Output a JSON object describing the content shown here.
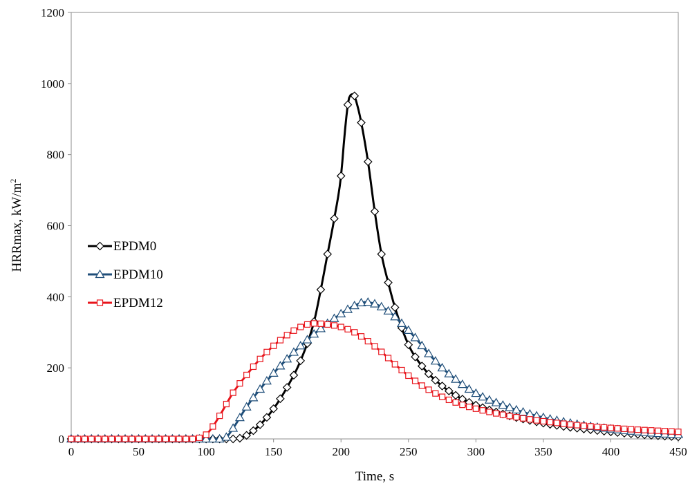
{
  "chart_data": {
    "type": "line",
    "title": "",
    "xlabel": "Time, s",
    "ylabel": "HRRmax, kW/m",
    "ylabel_sup": "2",
    "xlim": [
      0,
      450
    ],
    "ylim": [
      0,
      1200
    ],
    "xticks": [
      0,
      50,
      100,
      150,
      200,
      250,
      300,
      350,
      400,
      450
    ],
    "yticks": [
      0,
      200,
      400,
      600,
      800,
      1000,
      1200
    ],
    "grid": false,
    "legend_position": "left",
    "series": [
      {
        "name": "EPDM0",
        "color": "#000000",
        "marker": "diamond",
        "points": [
          [
            0,
            0
          ],
          [
            80,
            0
          ],
          [
            120,
            0
          ],
          [
            125,
            2
          ],
          [
            130,
            10
          ],
          [
            140,
            40
          ],
          [
            150,
            85
          ],
          [
            160,
            145
          ],
          [
            170,
            220
          ],
          [
            180,
            330
          ],
          [
            185,
            420
          ],
          [
            190,
            520
          ],
          [
            195,
            620
          ],
          [
            200,
            740
          ],
          [
            203,
            870
          ],
          [
            206,
            960
          ],
          [
            209,
            970
          ],
          [
            212,
            940
          ],
          [
            215,
            890
          ],
          [
            220,
            780
          ],
          [
            225,
            640
          ],
          [
            230,
            520
          ],
          [
            235,
            440
          ],
          [
            240,
            370
          ],
          [
            250,
            265
          ],
          [
            260,
            205
          ],
          [
            270,
            165
          ],
          [
            280,
            135
          ],
          [
            290,
            112
          ],
          [
            300,
            95
          ],
          [
            320,
            70
          ],
          [
            340,
            52
          ],
          [
            360,
            38
          ],
          [
            380,
            28
          ],
          [
            400,
            20
          ],
          [
            420,
            13
          ],
          [
            440,
            8
          ],
          [
            450,
            6
          ]
        ]
      },
      {
        "name": "EPDM10",
        "color": "#1f4e79",
        "marker": "triangle",
        "points": [
          [
            0,
            0
          ],
          [
            80,
            0
          ],
          [
            110,
            0
          ],
          [
            115,
            5
          ],
          [
            120,
            30
          ],
          [
            130,
            90
          ],
          [
            140,
            140
          ],
          [
            150,
            185
          ],
          [
            160,
            225
          ],
          [
            170,
            262
          ],
          [
            180,
            295
          ],
          [
            190,
            325
          ],
          [
            200,
            352
          ],
          [
            210,
            375
          ],
          [
            218,
            385
          ],
          [
            225,
            380
          ],
          [
            235,
            360
          ],
          [
            245,
            325
          ],
          [
            255,
            285
          ],
          [
            265,
            240
          ],
          [
            275,
            200
          ],
          [
            285,
            168
          ],
          [
            295,
            140
          ],
          [
            305,
            118
          ],
          [
            320,
            95
          ],
          [
            340,
            70
          ],
          [
            360,
            52
          ],
          [
            380,
            38
          ],
          [
            400,
            28
          ],
          [
            420,
            20
          ],
          [
            440,
            14
          ],
          [
            450,
            12
          ]
        ]
      },
      {
        "name": "EPDM12",
        "color": "#e8141b",
        "marker": "square",
        "points": [
          [
            0,
            0
          ],
          [
            90,
            0
          ],
          [
            95,
            3
          ],
          [
            100,
            12
          ],
          [
            105,
            35
          ],
          [
            110,
            65
          ],
          [
            120,
            130
          ],
          [
            130,
            180
          ],
          [
            140,
            225
          ],
          [
            150,
            262
          ],
          [
            160,
            292
          ],
          [
            170,
            315
          ],
          [
            180,
            325
          ],
          [
            190,
            322
          ],
          [
            200,
            315
          ],
          [
            210,
            300
          ],
          [
            220,
            275
          ],
          [
            230,
            245
          ],
          [
            240,
            210
          ],
          [
            250,
            178
          ],
          [
            260,
            150
          ],
          [
            270,
            128
          ],
          [
            280,
            110
          ],
          [
            290,
            96
          ],
          [
            300,
            85
          ],
          [
            320,
            68
          ],
          [
            340,
            55
          ],
          [
            360,
            45
          ],
          [
            380,
            37
          ],
          [
            400,
            31
          ],
          [
            420,
            26
          ],
          [
            440,
            22
          ],
          [
            450,
            20
          ]
        ]
      }
    ]
  }
}
